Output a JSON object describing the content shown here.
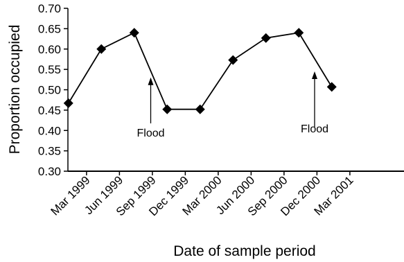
{
  "chart_data": {
    "type": "line",
    "title": "",
    "xlabel": "Date of sample period",
    "ylabel": "Proportion occupied",
    "x_categories": [
      "Mar 1999",
      "Jun 1999",
      "Sep 1999",
      "Dec 1999",
      "Mar 2000",
      "Jun 2000",
      "Sep 2000",
      "Dec 2000",
      "Mar 2001"
    ],
    "y_ticks": [
      "0.30",
      "0.35",
      "0.40",
      "0.45",
      "0.50",
      "0.55",
      "0.60",
      "0.65",
      "0.70"
    ],
    "ylim": [
      0.3,
      0.7
    ],
    "grid": false,
    "legend": "none",
    "marker": "diamond",
    "series": [
      {
        "x": [
          0.5,
          1.5,
          2.5,
          3.5,
          4.5,
          5.5,
          6.5,
          7.5,
          8.5
        ],
        "values": [
          0.467,
          0.6,
          0.64,
          0.452,
          0.452,
          0.573,
          0.627,
          0.64,
          0.507
        ]
      }
    ],
    "annotations": [
      {
        "text": "Flood",
        "x": 3.0,
        "y": 0.52
      },
      {
        "text": "Flood",
        "x": 8.0,
        "y": 0.535
      }
    ]
  }
}
